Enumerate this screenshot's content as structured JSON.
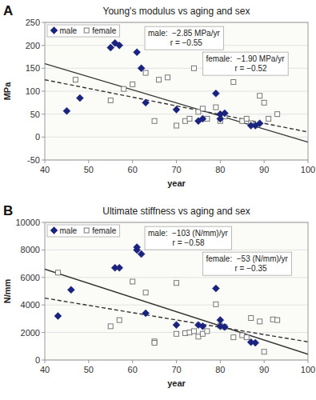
{
  "chart_data": [
    {
      "type": "scatter",
      "panel_label": "A",
      "title": "Young's modulus vs aging and sex",
      "x_label": "year",
      "y_label": "MPa",
      "xlim": [
        40,
        100
      ],
      "ylim": [
        -50,
        250
      ],
      "xticks": [
        40,
        50,
        60,
        70,
        80,
        90,
        100
      ],
      "yticks": [
        -50,
        0,
        50,
        100,
        150,
        200,
        250
      ],
      "grid": true,
      "legend": "upper-left",
      "annotations": [
        "male:  −2.85 MPa/yr\n          r = −0.55",
        "female:  −1.90 MPa/yr\n             r = −0.52"
      ],
      "series": [
        {
          "name": "male",
          "type": "scatter",
          "color": "#1a237e",
          "marker": "diamond",
          "x": [
            45,
            48,
            55,
            56,
            57,
            61,
            62,
            63,
            70,
            75,
            76,
            79,
            80,
            80,
            81,
            87,
            88,
            89
          ],
          "values": [
            57,
            85,
            195,
            205,
            200,
            185,
            150,
            75,
            60,
            35,
            40,
            95,
            50,
            40,
            52,
            25,
            25,
            30
          ]
        },
        {
          "name": "female",
          "type": "scatter",
          "color": "#777777",
          "marker": "hollow-square",
          "x": [
            47,
            55,
            58,
            60,
            63,
            65,
            66,
            68,
            70,
            72,
            73,
            74,
            75,
            76,
            77,
            79,
            80,
            81,
            83,
            85,
            86,
            87,
            89,
            90,
            91,
            93
          ],
          "values": [
            125,
            80,
            105,
            115,
            140,
            35,
            125,
            130,
            25,
            35,
            40,
            150,
            55,
            62,
            40,
            65,
            35,
            45,
            120,
            35,
            40,
            30,
            90,
            75,
            40,
            50
          ]
        },
        {
          "type": "line",
          "color": "#333333",
          "line_style": "solid",
          "x": [
            40,
            100
          ],
          "values": [
            160,
            -11
          ]
        },
        {
          "type": "line",
          "color": "#333333",
          "line_style": "dashed",
          "x": [
            40,
            100
          ],
          "values": [
            125,
            11
          ]
        }
      ]
    },
    {
      "type": "scatter",
      "panel_label": "B",
      "title": "Ultimate stiffness vs aging and sex",
      "x_label": "year",
      "y_label": "N/mm",
      "xlim": [
        40,
        100
      ],
      "ylim": [
        0,
        10000
      ],
      "xticks": [
        40,
        50,
        60,
        70,
        80,
        90,
        100
      ],
      "yticks": [
        0,
        2000,
        4000,
        6000,
        8000,
        10000
      ],
      "grid": true,
      "legend": "upper-left",
      "annotations": [
        "male:  −103 (N/mm)/yr\n           r = −0.58",
        "female:  −53 (N/mm)/yr\n             r = −0.35"
      ],
      "series": [
        {
          "name": "male",
          "type": "scatter",
          "color": "#1a237e",
          "marker": "diamond",
          "x": [
            43,
            46,
            56,
            57,
            61,
            61,
            62,
            63,
            70,
            75,
            76,
            79,
            80,
            80,
            81,
            87,
            88
          ],
          "values": [
            3200,
            5100,
            6700,
            6700,
            8200,
            8000,
            7700,
            3400,
            2550,
            2550,
            2450,
            5200,
            2900,
            2450,
            2400,
            1300,
            1250
          ]
        },
        {
          "name": "female",
          "type": "scatter",
          "color": "#777777",
          "marker": "hollow-square",
          "x": [
            43,
            55,
            57,
            60,
            63,
            65,
            65,
            70,
            70,
            72,
            73,
            74,
            75,
            76,
            77,
            79,
            80,
            81,
            83,
            85,
            86,
            87,
            89,
            90,
            92,
            93
          ],
          "values": [
            6350,
            2450,
            2900,
            5700,
            4900,
            1350,
            1250,
            5600,
            1900,
            1950,
            2000,
            2100,
            1700,
            1900,
            2100,
            4050,
            2500,
            2400,
            1650,
            1800,
            1650,
            3050,
            2800,
            600,
            2950,
            2900
          ]
        },
        {
          "type": "line",
          "color": "#333333",
          "line_style": "solid",
          "x": [
            40,
            100
          ],
          "values": [
            6600,
            420
          ]
        },
        {
          "type": "line",
          "color": "#333333",
          "line_style": "dashed",
          "x": [
            40,
            100
          ],
          "values": [
            4500,
            1320
          ]
        }
      ]
    }
  ]
}
